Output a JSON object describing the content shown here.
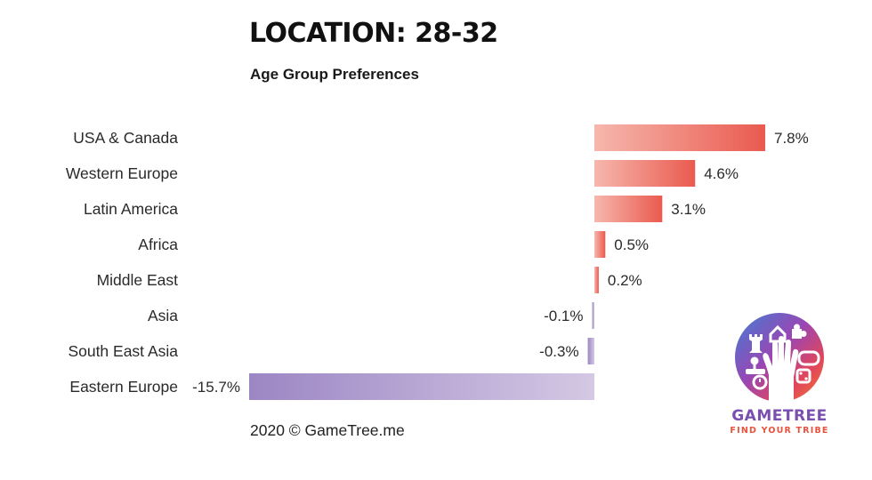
{
  "header": {
    "title": "LOCATION: 28-32",
    "subtitle": "Age Group Preferences"
  },
  "footer": {
    "copyright": "2020 © GameTree.me"
  },
  "logo": {
    "wordmark": "GAMETREE",
    "tagline": "FIND YOUR TRIBE"
  },
  "colors": {
    "positive_light": "#f6b7ad",
    "positive_dark": "#ea5a4f",
    "negative_light": "#d4c8e4",
    "negative_dark": "#9c86c4"
  },
  "chart_data": {
    "type": "bar",
    "orientation": "horizontal",
    "title": "LOCATION: 28-32",
    "subtitle": "Age Group Preferences",
    "categories": [
      "USA & Canada",
      "Western Europe",
      "Latin America",
      "Africa",
      "Middle East",
      "Asia",
      "South East Asia",
      "Eastern Europe"
    ],
    "values": [
      7.8,
      4.6,
      3.1,
      0.5,
      0.2,
      -0.1,
      -0.3,
      -15.7
    ],
    "value_labels": [
      "7.8%",
      "4.6%",
      "3.1%",
      "0.5%",
      "0.2%",
      "-0.1%",
      "-0.3%",
      "-15.7%"
    ],
    "unit": "%",
    "xlim": [
      -15.7,
      7.8
    ],
    "grid": false,
    "legend": "none"
  }
}
